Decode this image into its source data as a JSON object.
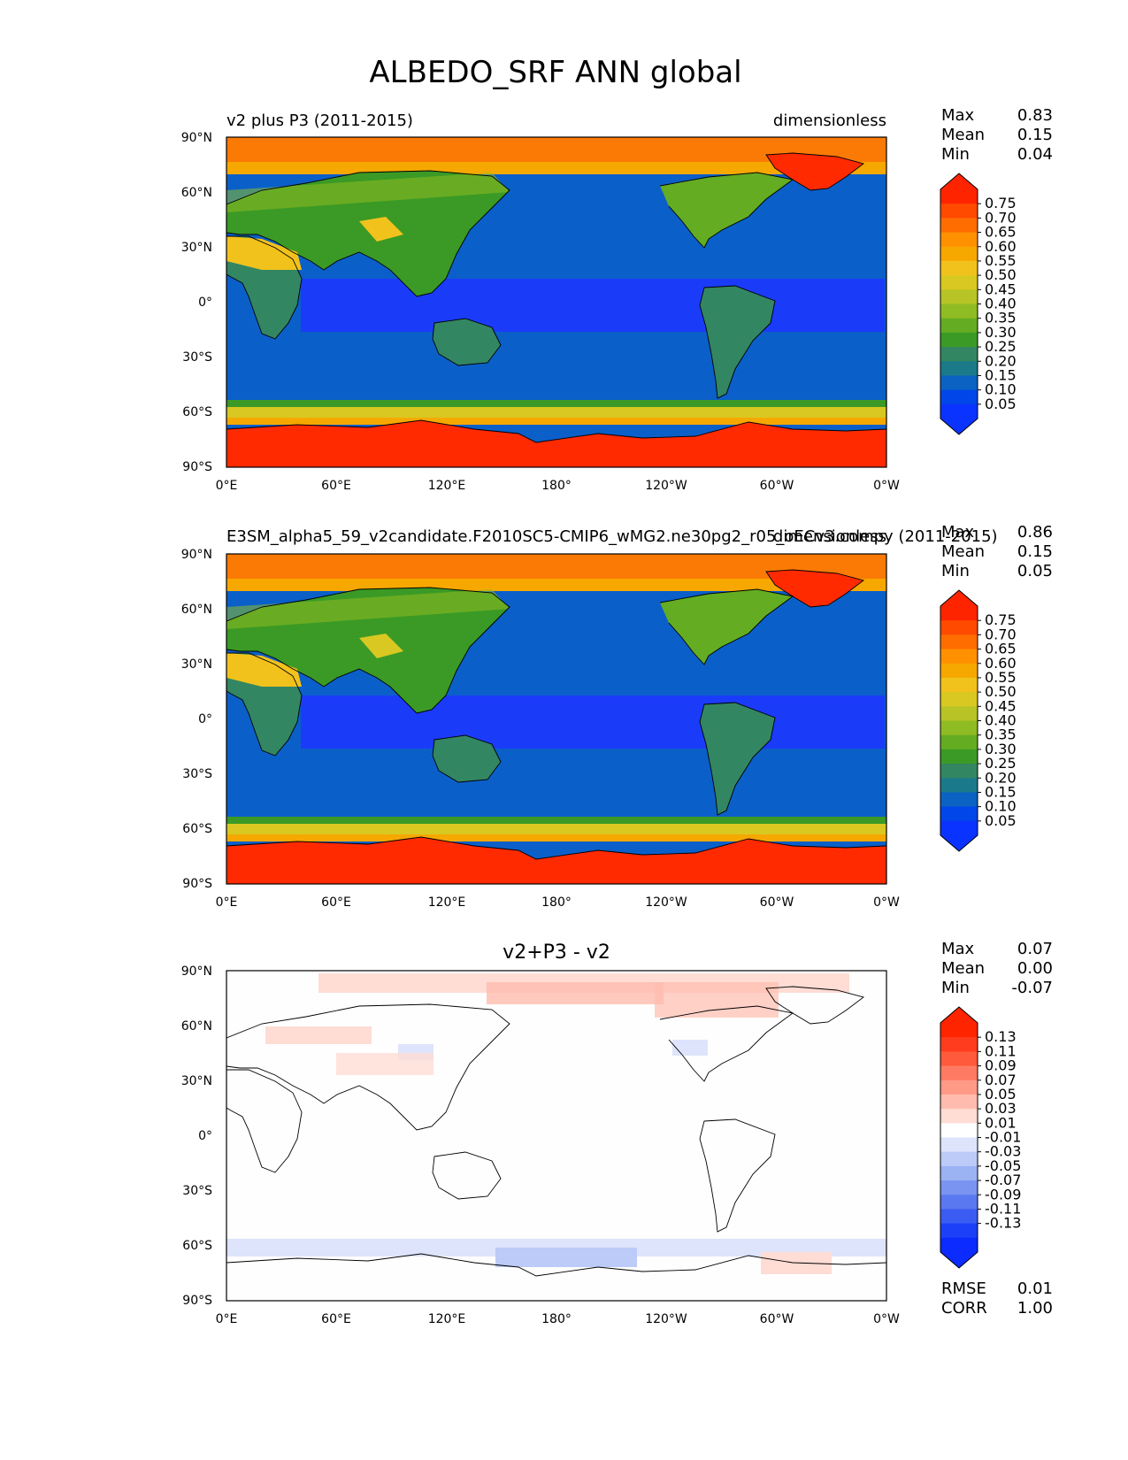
{
  "chart_data": {
    "suptitle": "ALBEDO_SRF ANN global",
    "panels": [
      {
        "id": "test",
        "type": "heatmap",
        "title_left": "v2 plus P3 (2011-2015)",
        "title_right": "dimensionless",
        "title_center": "",
        "stats": [
          {
            "label": "Max",
            "value": "0.83"
          },
          {
            "label": "Mean",
            "value": "0.15"
          },
          {
            "label": "Min",
            "value": "0.04"
          }
        ],
        "colorbar": {
          "ticks": [
            "0.75",
            "0.70",
            "0.65",
            "0.60",
            "0.55",
            "0.50",
            "0.45",
            "0.40",
            "0.35",
            "0.30",
            "0.25",
            "0.20",
            "0.15",
            "0.10",
            "0.05"
          ],
          "colors": [
            "#ff2400",
            "#ff4a00",
            "#ff6d00",
            "#ff9100",
            "#f6a800",
            "#f2c21c",
            "#d9c821",
            "#b8c425",
            "#8fbc22",
            "#64ac22",
            "#3b9a25",
            "#338662",
            "#1a7a8a",
            "#0b62c2",
            "#0046e8",
            "#0b33ff"
          ]
        },
        "xticks": [
          "0°E",
          "60°E",
          "120°E",
          "180°",
          "120°W",
          "60°W",
          "0°W"
        ],
        "yticks": [
          "90°N",
          "60°N",
          "30°N",
          "0°",
          "30°S",
          "60°S",
          "90°S"
        ],
        "lat_range": [
          -90,
          90
        ],
        "lon_range": [
          0,
          360
        ]
      },
      {
        "id": "ref",
        "type": "heatmap",
        "title_left": "E3SM_alpha5_59_v2candidate.F2010SC5-CMIP6_wMG2.ne30pg2_r05_oECv3.compy (2011-2015)",
        "title_right": "dimensionless",
        "title_center": "",
        "stats": [
          {
            "label": "Max",
            "value": "0.86"
          },
          {
            "label": "Mean",
            "value": "0.15"
          },
          {
            "label": "Min",
            "value": "0.05"
          }
        ],
        "colorbar": {
          "ticks": [
            "0.75",
            "0.70",
            "0.65",
            "0.60",
            "0.55",
            "0.50",
            "0.45",
            "0.40",
            "0.35",
            "0.30",
            "0.25",
            "0.20",
            "0.15",
            "0.10",
            "0.05"
          ],
          "colors": [
            "#ff2400",
            "#ff4a00",
            "#ff6d00",
            "#ff9100",
            "#f6a800",
            "#f2c21c",
            "#d9c821",
            "#b8c425",
            "#8fbc22",
            "#64ac22",
            "#3b9a25",
            "#338662",
            "#1a7a8a",
            "#0b62c2",
            "#0046e8",
            "#0b33ff"
          ]
        },
        "xticks": [
          "0°E",
          "60°E",
          "120°E",
          "180°",
          "120°W",
          "60°W",
          "0°W"
        ],
        "yticks": [
          "90°N",
          "60°N",
          "30°N",
          "0°",
          "30°S",
          "60°S",
          "90°S"
        ],
        "lat_range": [
          -90,
          90
        ],
        "lon_range": [
          0,
          360
        ]
      },
      {
        "id": "diff",
        "type": "heatmap",
        "title_left": "",
        "title_right": "",
        "title_center": "v2+P3 - v2",
        "stats": [
          {
            "label": "Max",
            "value": "0.07"
          },
          {
            "label": "Mean",
            "value": "0.00"
          },
          {
            "label": "Min",
            "value": "-0.07"
          }
        ],
        "bottom_stats": [
          {
            "label": "RMSE",
            "value": "0.01"
          },
          {
            "label": "CORR",
            "value": "1.00"
          }
        ],
        "colorbar": {
          "ticks": [
            "0.13",
            "0.11",
            "0.09",
            "0.07",
            "0.05",
            "0.03",
            "0.01",
            "-0.01",
            "-0.03",
            "-0.05",
            "-0.07",
            "-0.09",
            "-0.11",
            "-0.13"
          ],
          "colors": [
            "#ff2400",
            "#ff3c1e",
            "#ff5a3c",
            "#ff7a62",
            "#ff9a86",
            "#ffbcae",
            "#ffdcd4",
            "#ffffff",
            "#dde4fb",
            "#bccbf7",
            "#9bb2f3",
            "#7a95f1",
            "#5a78f0",
            "#3a5cf2",
            "#1c40f7",
            "#0b2bff"
          ]
        },
        "xticks": [
          "0°E",
          "60°E",
          "120°E",
          "180°",
          "120°W",
          "60°W",
          "0°W"
        ],
        "yticks": [
          "90°N",
          "60°N",
          "30°N",
          "0°",
          "30°S",
          "60°S",
          "90°S"
        ],
        "lat_range": [
          -90,
          90
        ],
        "lon_range": [
          0,
          360
        ]
      }
    ]
  }
}
